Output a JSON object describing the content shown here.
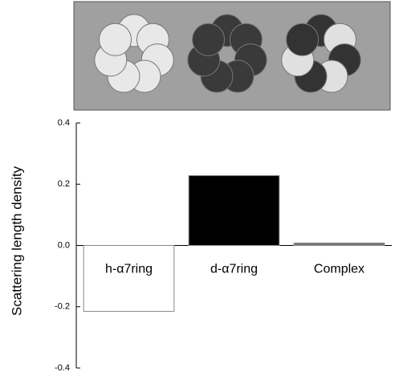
{
  "chart_data": {
    "type": "bar",
    "y_label": "Scattering length density",
    "categories": [
      "h-α7ring",
      "d-α7ring",
      "Complex"
    ],
    "values": [
      -0.215,
      0.228,
      0.008
    ],
    "colors": [
      "#ffffff",
      "#000000",
      "#777777"
    ],
    "ylim": [
      -0.4,
      0.4
    ],
    "yticks": [
      -0.4,
      -0.2,
      {
        "value": 0,
        "label": "0.0"
      },
      0.2,
      0.4
    ]
  }
}
